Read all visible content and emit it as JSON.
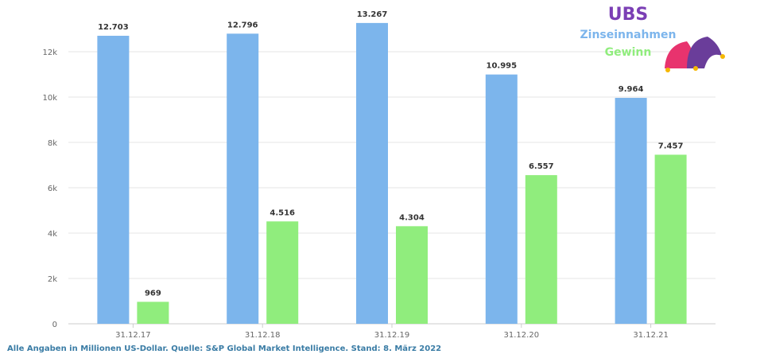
{
  "chart_data": {
    "type": "bar",
    "categories": [
      "31.12.17",
      "31.12.18",
      "31.12.19",
      "31.12.20",
      "31.12.21"
    ],
    "series": [
      {
        "name": "Zinseinnahmen",
        "color": "#7cb5ec",
        "values": [
          12703,
          12796,
          13267,
          10995,
          9964
        ],
        "labels": [
          "12.703",
          "12.796",
          "13.267",
          "10.995",
          "9.964"
        ]
      },
      {
        "name": "Gewinn",
        "color": "#90ed7d",
        "values": [
          969,
          4516,
          4304,
          6557,
          7457
        ],
        "labels": [
          "969",
          "4.516",
          "4.304",
          "6.557",
          "7.457"
        ]
      }
    ],
    "ylim": [
      0,
      14000
    ],
    "yticks": [
      0,
      2000,
      4000,
      6000,
      8000,
      10000,
      12000
    ],
    "ytick_labels": [
      "0",
      "2k",
      "4k",
      "6k",
      "8k",
      "10k",
      "12k"
    ],
    "grid": true,
    "legend_placement": "top-right"
  },
  "legend": {
    "title": "UBS",
    "title_color": "#7b3fb5",
    "items": [
      "Zinseinnahmen",
      "Gewinn"
    ]
  },
  "logo_icon": "jester-hat-icon",
  "source_note": {
    "text": "Alle Angaben in Millionen US-Dollar. Quelle:  S&P Global Market Intelligence. Stand: 8. März 2022",
    "color": "#3a7ca5"
  }
}
